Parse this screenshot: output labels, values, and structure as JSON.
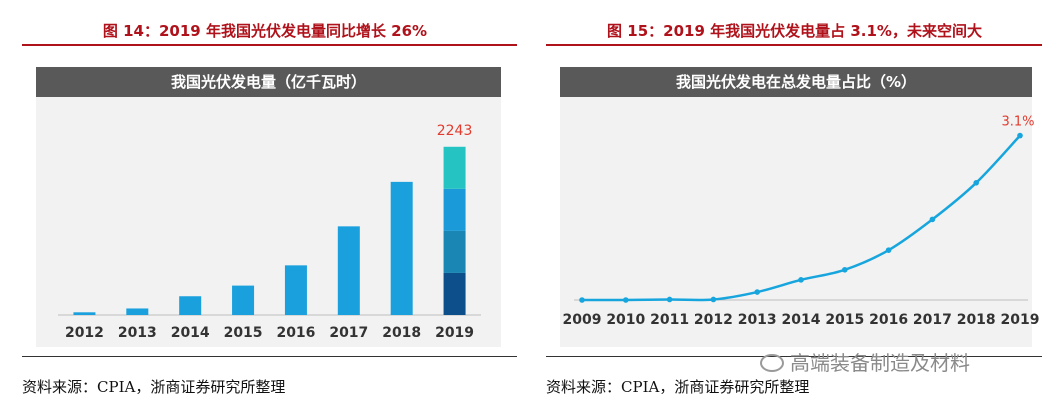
{
  "left": {
    "fig_title": "图 14：2019 年我国光伏发电量同比增长 26%",
    "chart_header": "我国光伏发电量（亿千瓦时）",
    "source": "资料来源：CPIA，浙商证券研究所整理"
  },
  "right": {
    "fig_title": "图 15：2019 年我国光伏发电量占 3.1%，未来空间大",
    "chart_header": "我国光伏发电在总发电量占比（%）",
    "source": "资料来源：CPIA，浙商证券研究所整理"
  },
  "watermark": "高端装备制造及材料",
  "colors": {
    "title_red": "#b0121b",
    "bar_blue": "#1aa0dc",
    "line_blue": "#17a5dd",
    "annotation_red": "#e23b2e",
    "header_gray": "#595959"
  },
  "chart_data": [
    {
      "type": "bar",
      "title": "我国光伏发电量（亿千瓦时）",
      "categories": [
        "2012",
        "2013",
        "2014",
        "2015",
        "2016",
        "2017",
        "2018",
        "2019"
      ],
      "values": [
        36,
        87,
        250,
        392,
        662,
        1182,
        1775,
        2243
      ],
      "ylim": [
        0,
        2400
      ],
      "annotations": [
        {
          "category": "2019",
          "label": "2243"
        }
      ],
      "stacked_last_bar_colors": [
        "#0c4f8a",
        "#1a86b3",
        "#1a9ad8",
        "#26c3c3"
      ]
    },
    {
      "type": "line",
      "title": "我国光伏发电在总发电量占比（%）",
      "categories": [
        "2009",
        "2010",
        "2011",
        "2012",
        "2013",
        "2014",
        "2015",
        "2016",
        "2017",
        "2018",
        "2019"
      ],
      "values": [
        0.0,
        0.0,
        0.01,
        0.01,
        0.15,
        0.38,
        0.57,
        0.94,
        1.52,
        2.21,
        3.1
      ],
      "ylim": [
        0,
        3.3
      ],
      "annotations": [
        {
          "category": "2019",
          "label": "3.1%"
        }
      ]
    }
  ]
}
